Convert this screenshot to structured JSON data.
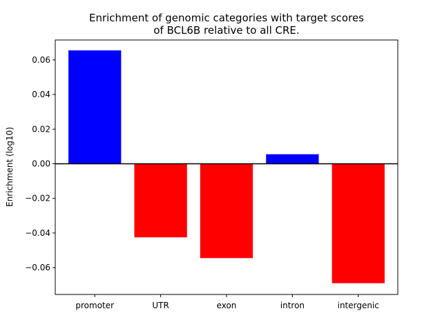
{
  "chart_data": {
    "type": "bar",
    "title_lines": [
      "Enrichment of genomic categories with target scores",
      "of BCL6B relative to all CRE."
    ],
    "xlabel": "",
    "ylabel": "Enrichment (log10)",
    "categories": [
      "promoter",
      "UTR",
      "exon",
      "intron",
      "intergenic"
    ],
    "values": [
      0.0655,
      -0.0425,
      -0.0545,
      0.0055,
      -0.069
    ],
    "ylim": [
      -0.0755,
      0.0715
    ],
    "yticks": [
      -0.06,
      -0.04,
      -0.02,
      0.0,
      0.02,
      0.04,
      0.06
    ],
    "ytick_labels": [
      "−0.06",
      "−0.04",
      "−0.02",
      "0.00",
      "0.02",
      "0.04",
      "0.06"
    ],
    "positive_color": "#0000ff",
    "negative_color": "#ff0000",
    "zero_line_color": "#000000",
    "grid": false,
    "legend": "none"
  }
}
